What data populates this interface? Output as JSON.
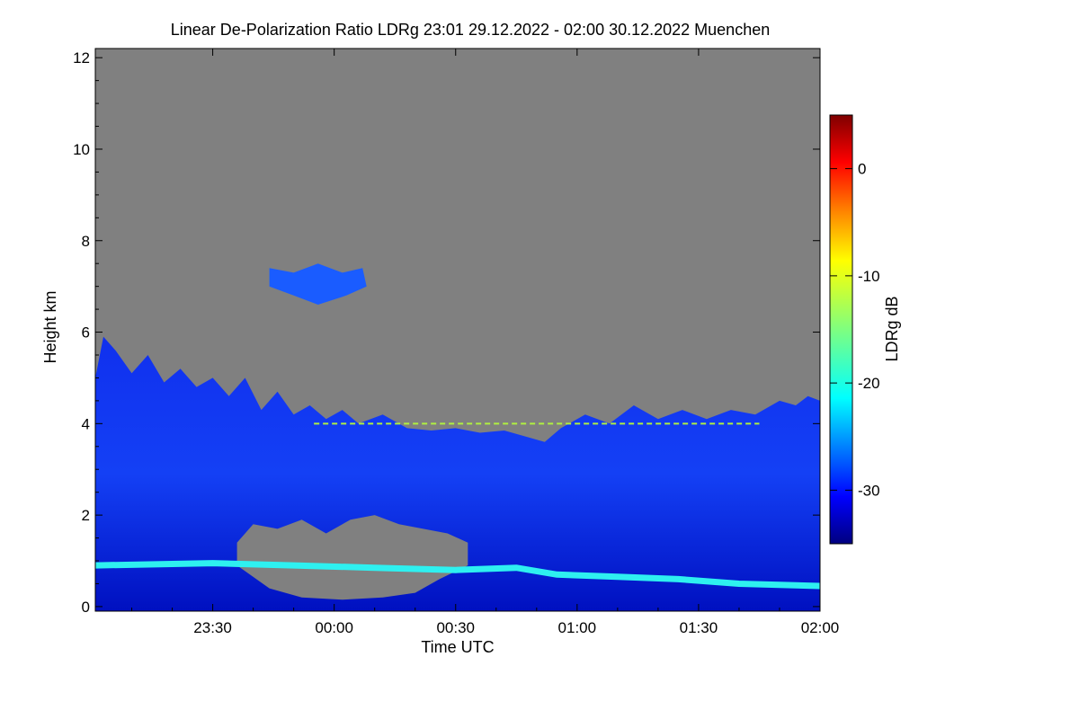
{
  "chart_data": {
    "type": "heatmap",
    "title": "Linear De-Polarization Ratio LDRg   23:01 29.12.2022 - 02:00 30.12.2022 Muenchen",
    "xlabel": "Time UTC",
    "ylabel": "Height km",
    "x_range_minutes_after_midnight": [
      -59,
      120
    ],
    "xlim_labels": [
      "23:01",
      "02:00"
    ],
    "xticks": [
      {
        "label": "23:30",
        "value": -30
      },
      {
        "label": "00:00",
        "value": 0
      },
      {
        "label": "00:30",
        "value": 30
      },
      {
        "label": "01:00",
        "value": 60
      },
      {
        "label": "01:30",
        "value": 90
      },
      {
        "label": "02:00",
        "value": 120
      }
    ],
    "ylim": [
      -0.1,
      12.2
    ],
    "yticks": [
      0,
      2,
      4,
      6,
      8,
      10,
      12
    ],
    "colorbar": {
      "label": "LDRg dB",
      "range": [
        -35,
        5
      ],
      "ticks": [
        0,
        -10,
        -20,
        -30
      ],
      "colormap": [
        "#00007f",
        "#0000ff",
        "#007fff",
        "#00ffff",
        "#7fff7f",
        "#ffff00",
        "#ff7f00",
        "#ff0000",
        "#7f0000"
      ]
    },
    "background_color": "#808080",
    "features": [
      {
        "name": "cloud-deck",
        "description": "broad LDRg around -30 dB",
        "height_km_top": [
          4.0,
          6.0
        ],
        "height_km_bottom": 0
      },
      {
        "name": "boundary-layer-band",
        "ldr_db": -22,
        "height_km_start": 0.9,
        "height_km_end": 0.45
      },
      {
        "name": "mid-level-cirrus",
        "ldr_db": -27,
        "height_km": [
          6.6,
          7.6
        ]
      },
      {
        "name": "high-depol-layer",
        "ldr_db": -10,
        "height_km": 4.0
      }
    ]
  }
}
